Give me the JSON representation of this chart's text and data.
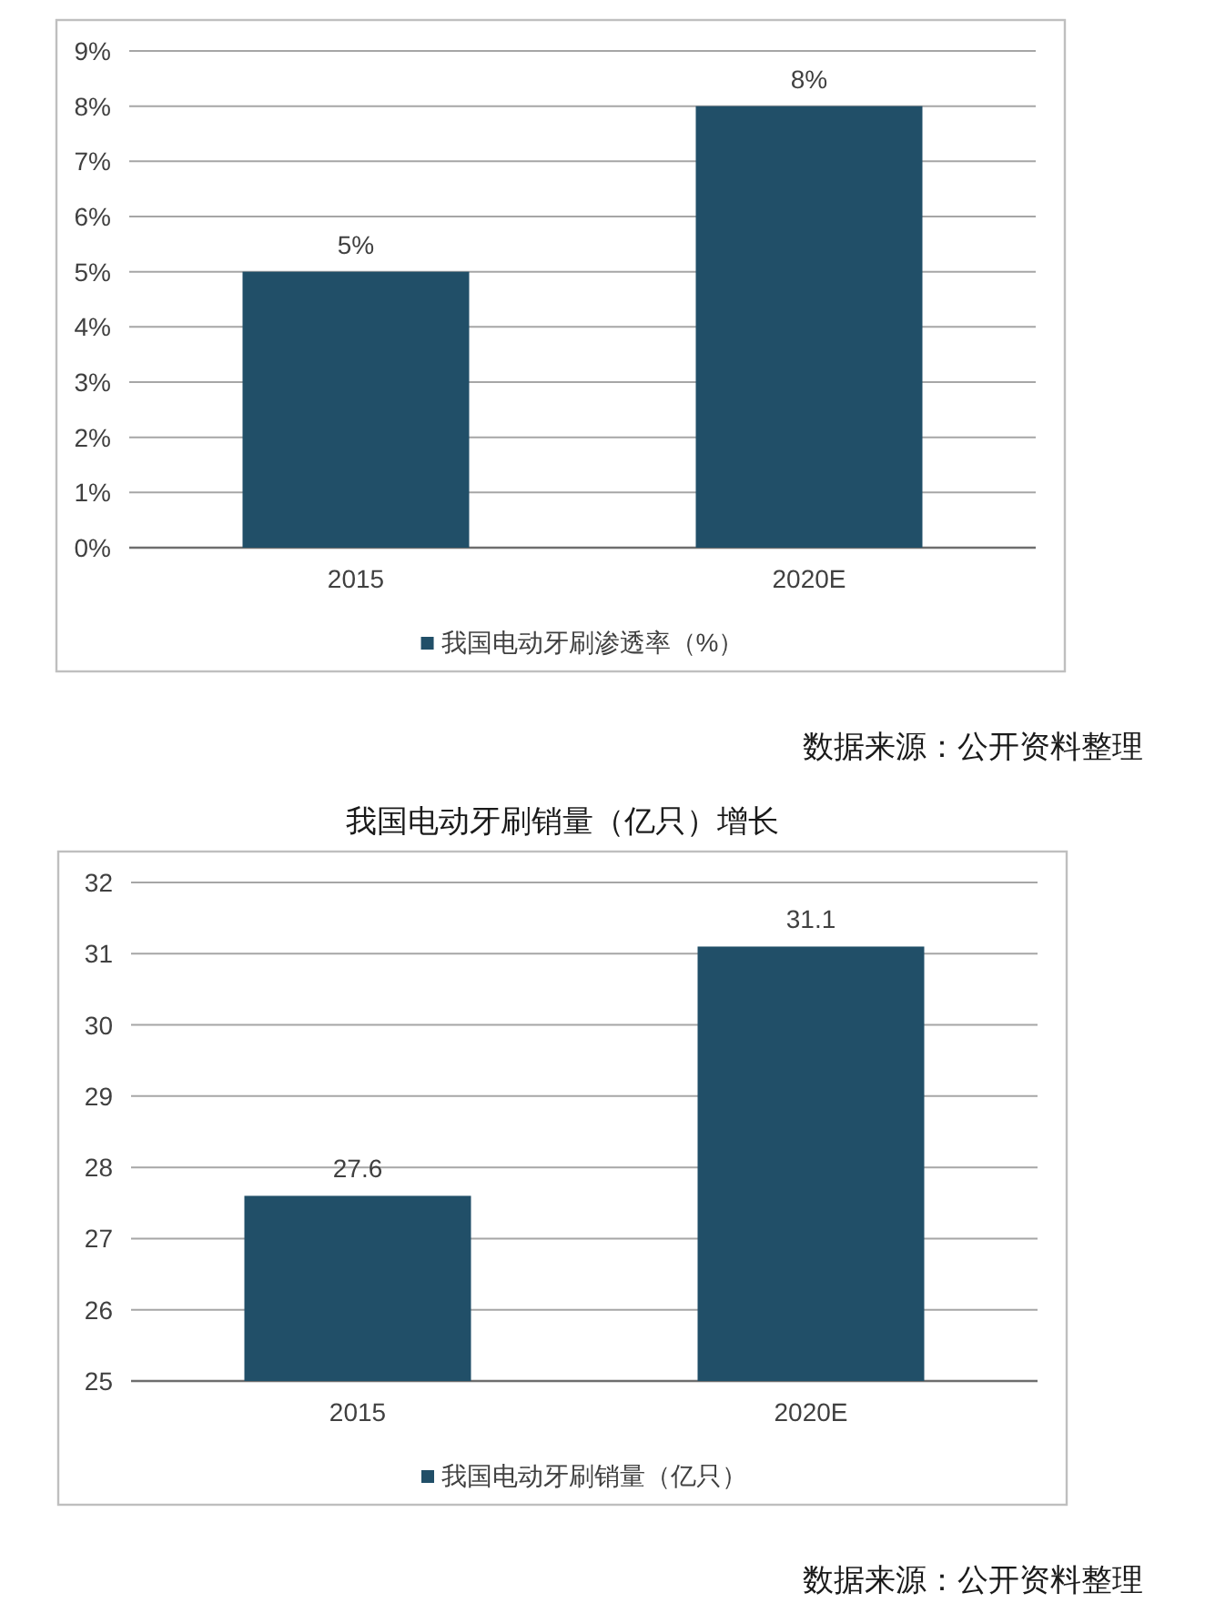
{
  "chart_data": [
    {
      "type": "bar",
      "categories": [
        "2015",
        "2020E"
      ],
      "series": [
        {
          "name": "我国电动牙刷渗透率（%）",
          "color": "#214f68",
          "values": [
            5,
            8
          ],
          "value_labels": [
            "5%",
            "8%"
          ]
        }
      ],
      "ylim": [
        0,
        9
      ],
      "yticks": [
        {
          "value": 0,
          "label": "0%"
        },
        {
          "value": 1,
          "label": "1%"
        },
        {
          "value": 2,
          "label": "2%"
        },
        {
          "value": 3,
          "label": "3%"
        },
        {
          "value": 4,
          "label": "4%"
        },
        {
          "value": 5,
          "label": "5%"
        },
        {
          "value": 6,
          "label": "6%"
        },
        {
          "value": 7,
          "label": "7%"
        },
        {
          "value": 8,
          "label": "8%"
        },
        {
          "value": 9,
          "label": "9%"
        }
      ],
      "grid": "y",
      "legend": "bottom",
      "annotations": [
        "数据来源：公开资料整理"
      ]
    },
    {
      "type": "bar",
      "title": "我国电动牙刷销量（亿只）增长",
      "categories": [
        "2015",
        "2020E"
      ],
      "series": [
        {
          "name": "我国电动牙刷销量（亿只）",
          "color": "#214f68",
          "values": [
            27.6,
            31.1
          ]
        }
      ],
      "ylim": [
        25,
        32
      ],
      "yticks": [
        25,
        26,
        27,
        28,
        29,
        30,
        31,
        32
      ],
      "grid": "y",
      "legend": "bottom",
      "data_labels": true,
      "annotations": [
        "数据来源：公开资料整理"
      ]
    }
  ]
}
